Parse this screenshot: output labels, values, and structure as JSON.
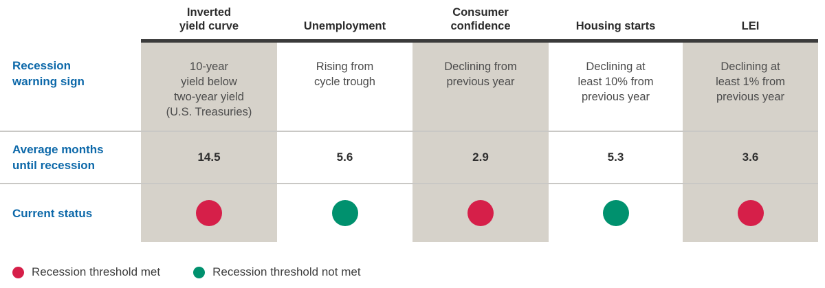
{
  "colors": {
    "met": "#D61F49",
    "not-met": "#00916E",
    "label_blue": "#0C68A9",
    "shade": "#D6D2CA",
    "header_text": "#2B2B2B",
    "body_text": "#4B4B4B",
    "top_border": "#3B3B3B"
  },
  "row_labels": {
    "warning_sign": "Recession\nwarning sign",
    "avg_months": "Average months\nuntil recession",
    "current_status": "Current status"
  },
  "columns": [
    {
      "header": "Inverted\nyield curve",
      "warning_sign": "10-year\nyield below\ntwo-year yield\n(U.S. Treasuries)",
      "avg_months": "14.5",
      "status": "met"
    },
    {
      "header": "Unemployment",
      "warning_sign": "Rising from\ncycle trough",
      "avg_months": "5.6",
      "status": "not-met"
    },
    {
      "header": "Consumer\nconfidence",
      "warning_sign": "Declining from\nprevious year",
      "avg_months": "2.9",
      "status": "met"
    },
    {
      "header": "Housing starts",
      "warning_sign": "Declining at\nleast 10% from\nprevious year",
      "avg_months": "5.3",
      "status": "not-met"
    },
    {
      "header": "LEI",
      "warning_sign": "Declining at\nleast 1% from\nprevious year",
      "avg_months": "3.6",
      "status": "met"
    }
  ],
  "legend": {
    "items": [
      {
        "label": "Recession threshold met",
        "status": "met"
      },
      {
        "label": "Recession threshold not met",
        "status": "not-met"
      }
    ]
  },
  "chart_data": {
    "type": "table",
    "columns": [
      "Inverted yield curve",
      "Unemployment",
      "Consumer confidence",
      "Housing starts",
      "LEI"
    ],
    "rows": [
      {
        "label": "Recession warning sign",
        "values": [
          "10-year yield below two-year yield (U.S. Treasuries)",
          "Rising from cycle trough",
          "Declining from previous year",
          "Declining at least 10% from previous year",
          "Declining at least 1% from previous year"
        ]
      },
      {
        "label": "Average months until recession",
        "values": [
          14.5,
          5.6,
          2.9,
          5.3,
          3.6
        ]
      },
      {
        "label": "Current status",
        "values": [
          "met",
          "not-met",
          "met",
          "not-met",
          "met"
        ]
      }
    ],
    "legend": [
      "Recession threshold met",
      "Recession threshold not met"
    ],
    "status_colors": {
      "met": "#D61F49",
      "not-met": "#00916E"
    }
  }
}
